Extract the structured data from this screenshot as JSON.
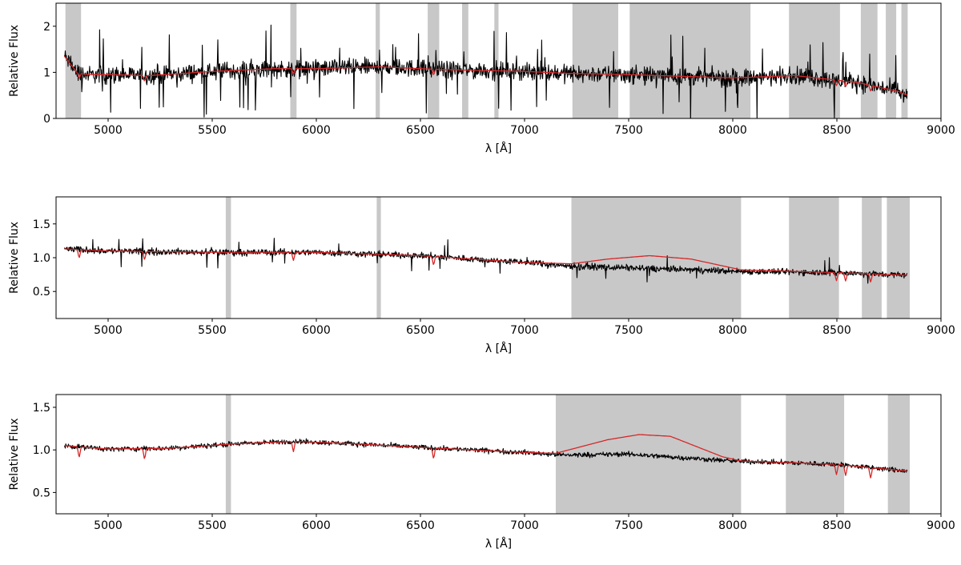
{
  "chart_data": [
    {
      "type": "line",
      "xlabel": "λ [Å]",
      "ylabel": "Relative Flux",
      "xlim": [
        4750,
        9000
      ],
      "ylim": [
        0,
        2.5
      ],
      "xticks": [
        5000,
        5500,
        6000,
        6500,
        7000,
        7500,
        8000,
        8500,
        9000
      ],
      "yticks": [
        0,
        1,
        2
      ],
      "grid": false,
      "masked_regions": [
        [
          4795,
          4870
        ],
        [
          5875,
          5905
        ],
        [
          6285,
          6305
        ],
        [
          6535,
          6590
        ],
        [
          6700,
          6730
        ],
        [
          6855,
          6875
        ],
        [
          7230,
          7450
        ],
        [
          7505,
          8085
        ],
        [
          8270,
          8515
        ],
        [
          8615,
          8695
        ],
        [
          8735,
          8785
        ],
        [
          8810,
          8840
        ]
      ],
      "series": [
        {
          "color": "#000000",
          "noise": 0.16,
          "spikes": 0.06,
          "x": [
            4790,
            4850,
            4900,
            5000,
            5200,
            5500,
            5800,
            6000,
            6300,
            6600,
            7000,
            7200,
            7500,
            8000,
            8300,
            8600,
            8800,
            8840
          ],
          "y": [
            1.35,
            1.0,
            0.95,
            0.95,
            0.93,
            1.02,
            1.08,
            1.08,
            1.12,
            1.06,
            1.02,
            0.98,
            0.95,
            0.88,
            0.93,
            0.78,
            0.58,
            0.5
          ]
        },
        {
          "color": "#d62728",
          "noise": 0.0,
          "spikes": 0.0,
          "x": [
            4790,
            4850,
            4900,
            5000,
            5200,
            5500,
            5800,
            6000,
            6300,
            6600,
            7000,
            7200,
            7500,
            8000,
            8300,
            8600,
            8800,
            8840
          ],
          "y": [
            1.35,
            1.0,
            0.95,
            0.95,
            0.93,
            1.02,
            1.08,
            1.08,
            1.12,
            1.06,
            1.02,
            0.98,
            0.95,
            0.88,
            0.93,
            0.78,
            0.58,
            0.5
          ]
        }
      ]
    },
    {
      "type": "line",
      "xlabel": "λ [Å]",
      "ylabel": "Relative Flux",
      "xlim": [
        4750,
        9000
      ],
      "ylim": [
        0.1,
        1.9
      ],
      "xticks": [
        5000,
        5500,
        6000,
        6500,
        7000,
        7500,
        8000,
        8500,
        9000
      ],
      "yticks": [
        0.5,
        1.0,
        1.5
      ],
      "grid": false,
      "masked_regions": [
        [
          5565,
          5590
        ],
        [
          6290,
          6310
        ],
        [
          7225,
          8040
        ],
        [
          8270,
          8510
        ],
        [
          8620,
          8715
        ],
        [
          8740,
          8850
        ]
      ],
      "series": [
        {
          "color": "#000000",
          "noise": 0.04,
          "spikes": 0.02,
          "x": [
            4790,
            5000,
            5500,
            6000,
            6500,
            7000,
            7200,
            7500,
            8000,
            8500,
            8840
          ],
          "y": [
            1.13,
            1.1,
            1.08,
            1.08,
            1.03,
            0.93,
            0.88,
            0.85,
            0.8,
            0.78,
            0.74
          ]
        },
        {
          "color": "#d62728",
          "noise": 0.0,
          "spikes": 0.0,
          "x": [
            4790,
            5000,
            5500,
            6000,
            6500,
            7000,
            7225,
            7400,
            7600,
            7800,
            8040,
            8500,
            8840
          ],
          "y": [
            1.13,
            1.1,
            1.08,
            1.08,
            1.03,
            0.93,
            0.91,
            0.98,
            1.03,
            0.98,
            0.82,
            0.78,
            0.74
          ]
        }
      ]
    },
    {
      "type": "line",
      "xlabel": "λ [Å]",
      "ylabel": "Relative Flux",
      "xlim": [
        4750,
        9000
      ],
      "ylim": [
        0.25,
        1.65
      ],
      "xticks": [
        5000,
        5500,
        6000,
        6500,
        7000,
        7500,
        8000,
        8500,
        9000
      ],
      "yticks": [
        0.5,
        1.0,
        1.5
      ],
      "grid": false,
      "masked_regions": [
        [
          5565,
          5590
        ],
        [
          7150,
          8040
        ],
        [
          8255,
          8535
        ],
        [
          8745,
          8850
        ]
      ],
      "series": [
        {
          "color": "#000000",
          "noise": 0.025,
          "spikes": 0.0,
          "x": [
            4790,
            5000,
            5300,
            5600,
            5900,
            6200,
            6500,
            7000,
            7200,
            7500,
            8000,
            8500,
            8840
          ],
          "y": [
            1.05,
            1.01,
            1.02,
            1.07,
            1.1,
            1.07,
            1.03,
            0.97,
            0.94,
            0.95,
            0.87,
            0.83,
            0.75
          ]
        },
        {
          "color": "#d62728",
          "noise": 0.0,
          "spikes": 0.0,
          "x": [
            4790,
            5000,
            5300,
            5600,
            5900,
            6200,
            6500,
            7000,
            7150,
            7400,
            7550,
            7700,
            7950,
            8040,
            8500,
            8840
          ],
          "y": [
            1.05,
            1.01,
            1.02,
            1.07,
            1.1,
            1.07,
            1.03,
            0.97,
            0.96,
            1.12,
            1.18,
            1.16,
            0.92,
            0.87,
            0.83,
            0.75
          ]
        }
      ]
    }
  ]
}
